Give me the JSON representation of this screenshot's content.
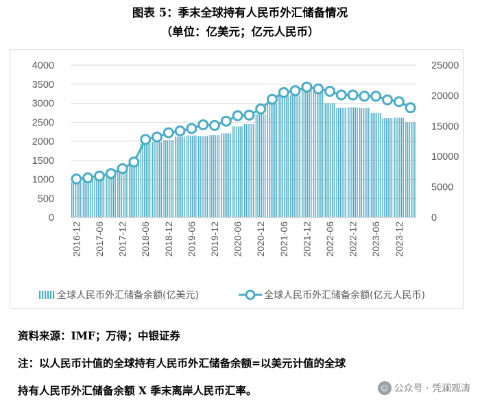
{
  "title": "图表 5：季末全球持有人民币外汇储备情况",
  "subtitle": "（单位：亿美元；亿元人民币）",
  "source": "资料来源：IMF；万得；中银证券",
  "note_line1": "注：以人民币计值的全球持有人民币外汇储备余额=以美元计值的全球",
  "note_line2": "持有人民币外汇储备余额 X 季末离岸人民币汇率。",
  "watermark": "公众号 · 凭澜观涛",
  "chart_data": {
    "type": "bar",
    "x": [
      "2016-12",
      "2017-03",
      "2017-06",
      "2017-09",
      "2017-12",
      "2018-03",
      "2018-06",
      "2018-09",
      "2018-12",
      "2019-03",
      "2019-06",
      "2019-09",
      "2019-12",
      "2020-03",
      "2020-06",
      "2020-09",
      "2020-12",
      "2021-03",
      "2021-06",
      "2021-09",
      "2021-12",
      "2022-03",
      "2022-06",
      "2022-09",
      "2022-12",
      "2023-03",
      "2023-06",
      "2023-09",
      "2023-12",
      "2024-03"
    ],
    "x_tick_labels": [
      "2016-12",
      "2017-06",
      "2017-12",
      "2018-06",
      "2018-12",
      "2019-06",
      "2019-12",
      "2020-06",
      "2020-12",
      "2021-06",
      "2021-12",
      "2022-06",
      "2022-12",
      "2023-06",
      "2023-12"
    ],
    "series": [
      {
        "name": "全球人民币外汇储备余额(亿美元)",
        "type": "bar",
        "axis": "left",
        "color": "#4bacc6",
        "values": [
          908,
          1000,
          1010,
          1080,
          1230,
          1400,
          1940,
          1980,
          2030,
          2120,
          2150,
          2140,
          2160,
          2210,
          2390,
          2450,
          2710,
          3000,
          3180,
          3210,
          3350,
          3340,
          3000,
          2880,
          2890,
          2880,
          2740,
          2610,
          2620,
          2500
        ]
      },
      {
        "name": "全球人民币外汇储备余额(亿元人民币)",
        "type": "line",
        "axis": "right",
        "color": "#4bacc6",
        "values": [
          6300,
          6500,
          6800,
          7200,
          8000,
          9100,
          12800,
          13200,
          13900,
          14200,
          14600,
          15200,
          15100,
          15800,
          16700,
          16800,
          17800,
          19400,
          20500,
          20800,
          21400,
          21100,
          20700,
          20100,
          20100,
          19900,
          19900,
          19300,
          19000,
          18000
        ]
      }
    ],
    "left_axis": {
      "min": 0,
      "max": 4000,
      "ticks": [
        0,
        500,
        1000,
        1500,
        2000,
        2500,
        3000,
        3500,
        4000
      ]
    },
    "right_axis": {
      "min": 0,
      "max": 25000,
      "ticks": [
        0,
        5000,
        10000,
        15000,
        20000,
        25000
      ]
    },
    "grid": true,
    "legend_position": "bottom"
  }
}
